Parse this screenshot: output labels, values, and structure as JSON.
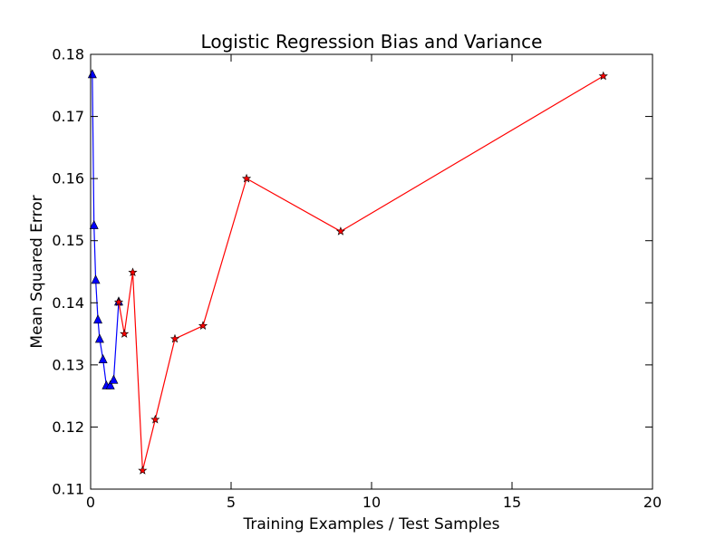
{
  "chart_data": {
    "type": "line",
    "title": "Logistic Regression Bias and Variance",
    "xlabel": "Training Examples / Test Samples",
    "ylabel": "Mean Squared Error",
    "xlim": [
      0,
      20
    ],
    "ylim": [
      0.11,
      0.18
    ],
    "xticks": [
      0,
      5,
      10,
      15,
      20
    ],
    "xtick_labels": [
      "0",
      "5",
      "10",
      "15",
      "20"
    ],
    "yticks": [
      0.11,
      0.12,
      0.13,
      0.14,
      0.15,
      0.16,
      0.17,
      0.18
    ],
    "ytick_labels": [
      "0.11",
      "0.12",
      "0.13",
      "0.14",
      "0.15",
      "0.16",
      "0.17",
      "0.18"
    ],
    "grid": false,
    "legend": "none",
    "series": [
      {
        "color": "#0000ff",
        "marker": "triangle",
        "x": [
          0.06,
          0.12,
          0.18,
          0.26,
          0.32,
          0.44,
          0.56,
          0.7,
          0.82,
          1.0
        ],
        "y": [
          0.1768,
          0.1525,
          0.1437,
          0.1373,
          0.1342,
          0.1309,
          0.1267,
          0.1267,
          0.1276,
          0.1402
        ]
      },
      {
        "color": "#ff0000",
        "marker": "star",
        "x": [
          1.0,
          1.2,
          1.5,
          1.85,
          2.3,
          3.0,
          4.0,
          5.55,
          8.9,
          18.25
        ],
        "y": [
          0.1401,
          0.135,
          0.1449,
          0.113,
          0.1212,
          0.1342,
          0.1363,
          0.16,
          0.1515,
          0.1765
        ]
      }
    ]
  }
}
